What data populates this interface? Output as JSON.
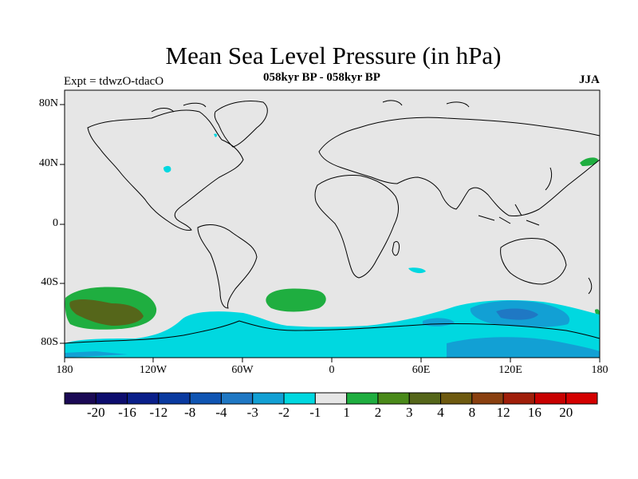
{
  "title": "Mean Sea Level Pressure (in hPa)",
  "experiment": "Expt = tdwzO-tdacO",
  "period": "058kyr BP - 058kyr BP",
  "season": "JJA",
  "lat_labels": [
    "80N",
    "40N",
    "0",
    "40S",
    "80S"
  ],
  "lon_labels": [
    "180",
    "120W",
    "60W",
    "0",
    "60E",
    "120E",
    "180"
  ],
  "colorbar": {
    "labels": [
      "-20",
      "-16",
      "-12",
      "-8",
      "-4",
      "-3",
      "-2",
      "-1",
      "1",
      "2",
      "3",
      "4",
      "8",
      "12",
      "16",
      "20"
    ],
    "colors": [
      "#1b0a55",
      "#0d0d6e",
      "#0a1f8a",
      "#0a3aa0",
      "#1055b3",
      "#1f78c4",
      "#12a0d4",
      "#00d8e0",
      "#e6e6e6",
      "#1fae40",
      "#4a8a1a",
      "#55661a",
      "#6e5a10",
      "#8a4010",
      "#a01e0a",
      "#c80000",
      "#d40000"
    ]
  },
  "colors": {
    "background_neutral": "#e6e6e6",
    "land_outline": "#000000"
  }
}
